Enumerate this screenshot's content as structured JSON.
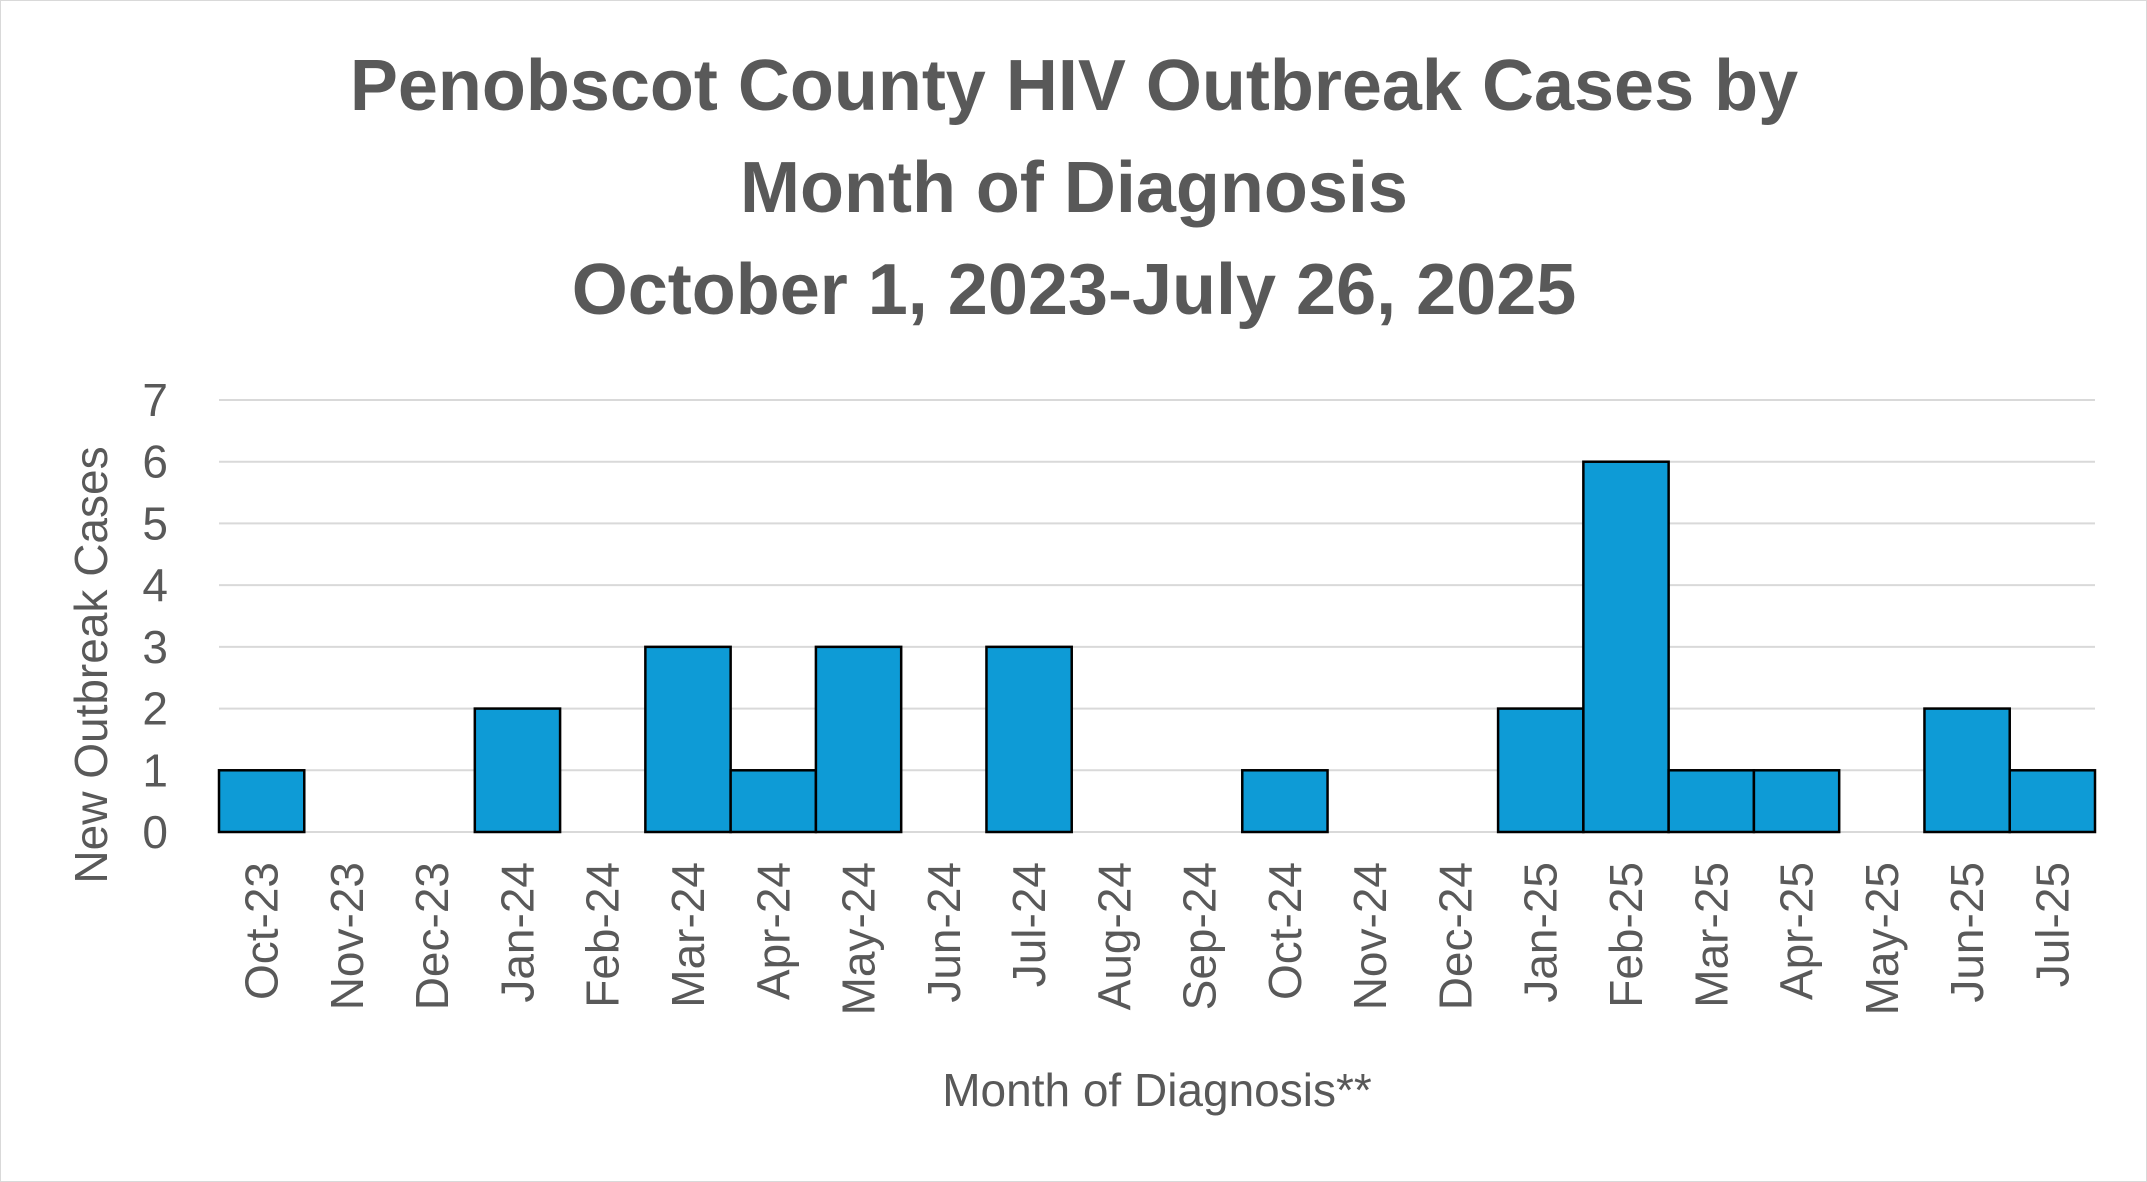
{
  "chart_data": {
    "type": "bar",
    "title_lines": [
      "Penobscot County HIV Outbreak Cases by",
      "Month of Diagnosis",
      "October 1, 2023-July 26, 2025"
    ],
    "xlabel": "Month of Diagnosis**",
    "ylabel": "New Outbreak Cases",
    "ylim": [
      0,
      7
    ],
    "yticks": [
      "0",
      "1",
      "2",
      "3",
      "4",
      "5",
      "6",
      "7"
    ],
    "grid": true,
    "legend": "none",
    "categories": [
      "Oct-23",
      "Nov-23",
      "Dec-23",
      "Jan-24",
      "Feb-24",
      "Mar-24",
      "Apr-24",
      "May-24",
      "Jun-24",
      "Jul-24",
      "Aug-24",
      "Sep-24",
      "Oct-24",
      "Nov-24",
      "Dec-24",
      "Jan-25",
      "Feb-25",
      "Mar-25",
      "Apr-25",
      "May-25",
      "Jun-25",
      "Jul-25"
    ],
    "values": [
      1,
      0,
      0,
      2,
      0,
      3,
      1,
      3,
      0,
      3,
      0,
      0,
      1,
      0,
      0,
      2,
      6,
      1,
      1,
      0,
      2,
      1
    ],
    "bar_color": "#0e9bd6",
    "bar_edge_color": "#000000",
    "grid_color": "#d9d9d9",
    "text_color": "#595959"
  }
}
